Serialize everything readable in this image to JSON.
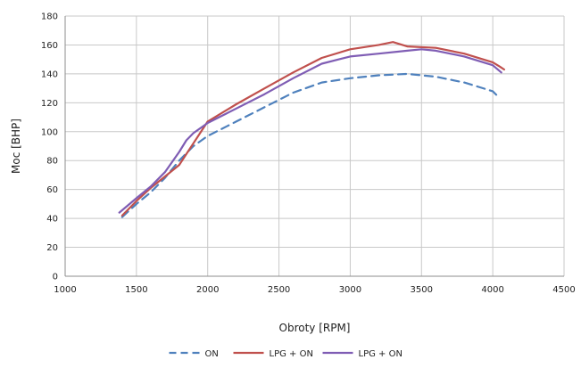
{
  "chart_data": {
    "type": "line",
    "xlabel": "Obroty [RPM]",
    "ylabel": "Moc [BHP]",
    "xlim": [
      1000,
      4500
    ],
    "ylim": [
      0,
      180
    ],
    "xticks": [
      1000,
      1500,
      2000,
      2500,
      3000,
      3500,
      4000,
      4500
    ],
    "yticks": [
      0,
      20,
      40,
      60,
      80,
      100,
      120,
      140,
      160,
      180
    ],
    "grid": true,
    "legend_position": "bottom",
    "series": [
      {
        "name": "ON",
        "color": "#4f81bd",
        "style": "dashed",
        "x": [
          1400,
          1500,
          1600,
          1700,
          1800,
          1900,
          2000,
          2200,
          2400,
          2600,
          2800,
          3000,
          3200,
          3400,
          3600,
          3800,
          3900,
          4000,
          4050
        ],
        "y": [
          41,
          50,
          58,
          68,
          80,
          90,
          97,
          107,
          117,
          127,
          134,
          137,
          139,
          140,
          138,
          134,
          131,
          128,
          123
        ]
      },
      {
        "name": "LPG + ON",
        "color": "#c0504d",
        "style": "solid",
        "x": [
          1400,
          1500,
          1600,
          1700,
          1800,
          1900,
          2000,
          2200,
          2400,
          2600,
          2800,
          3000,
          3200,
          3300,
          3400,
          3600,
          3800,
          4000,
          4050,
          4080
        ],
        "y": [
          42,
          52,
          61,
          69,
          77,
          92,
          107,
          119,
          130,
          141,
          151,
          157,
          160,
          162,
          159,
          158,
          154,
          148,
          145,
          143
        ]
      },
      {
        "name": "LPG + ON",
        "color": "#7f5db4",
        "style": "solid",
        "x": [
          1380,
          1500,
          1600,
          1700,
          1800,
          1850,
          1900,
          2000,
          2200,
          2400,
          2600,
          2800,
          3000,
          3200,
          3400,
          3500,
          3600,
          3800,
          4000,
          4060
        ],
        "y": [
          44,
          54,
          62,
          72,
          86,
          94,
          99,
          106,
          116,
          126,
          137,
          147,
          152,
          154,
          156,
          157,
          156,
          152,
          146,
          141
        ]
      }
    ]
  }
}
